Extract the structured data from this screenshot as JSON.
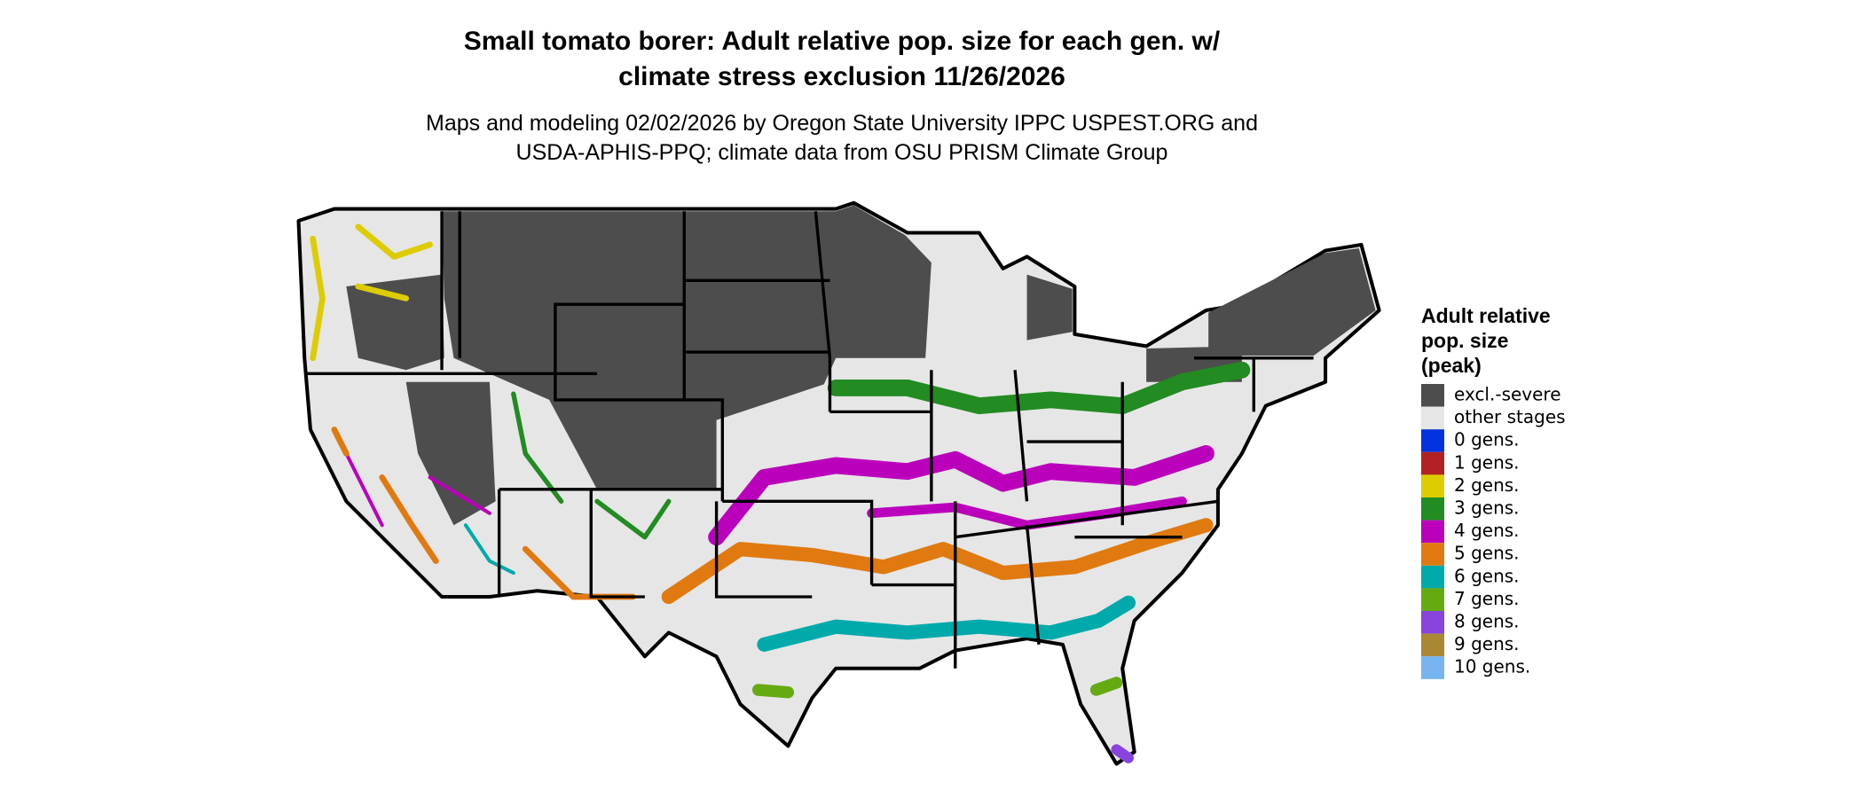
{
  "header": {
    "title": [
      "Small tomato borer: Adult relative pop. size for each gen. w/",
      "climate stress exclusion 11/26/2026"
    ],
    "subtitle": [
      "Maps and modeling 02/02/2026 by Oregon State University IPPC USPEST.ORG and",
      "USDA-APHIS-PPQ; climate data from OSU PRISM Climate Group"
    ]
  },
  "legend": {
    "title": [
      "Adult relative",
      "pop. size",
      "(peak)"
    ],
    "items": [
      {
        "label": "excl.-severe",
        "color": "#4d4d4d"
      },
      {
        "label": "other stages",
        "color": "#e6e6e6"
      },
      {
        "label": "0 gens.",
        "color": "#0033dd"
      },
      {
        "label": "1 gens.",
        "color": "#b22222"
      },
      {
        "label": "2 gens.",
        "color": "#ddcc00"
      },
      {
        "label": "3 gens.",
        "color": "#228b22"
      },
      {
        "label": "4 gens.",
        "color": "#bb00bb"
      },
      {
        "label": "5 gens.",
        "color": "#e07a10"
      },
      {
        "label": "6 gens.",
        "color": "#00aaaa"
      },
      {
        "label": "7 gens.",
        "color": "#66aa11"
      },
      {
        "label": "8 gens.",
        "color": "#8844dd"
      },
      {
        "label": "9 gens.",
        "color": "#aa8833"
      },
      {
        "label": "10 gens.",
        "color": "#77b4f0"
      }
    ]
  }
}
